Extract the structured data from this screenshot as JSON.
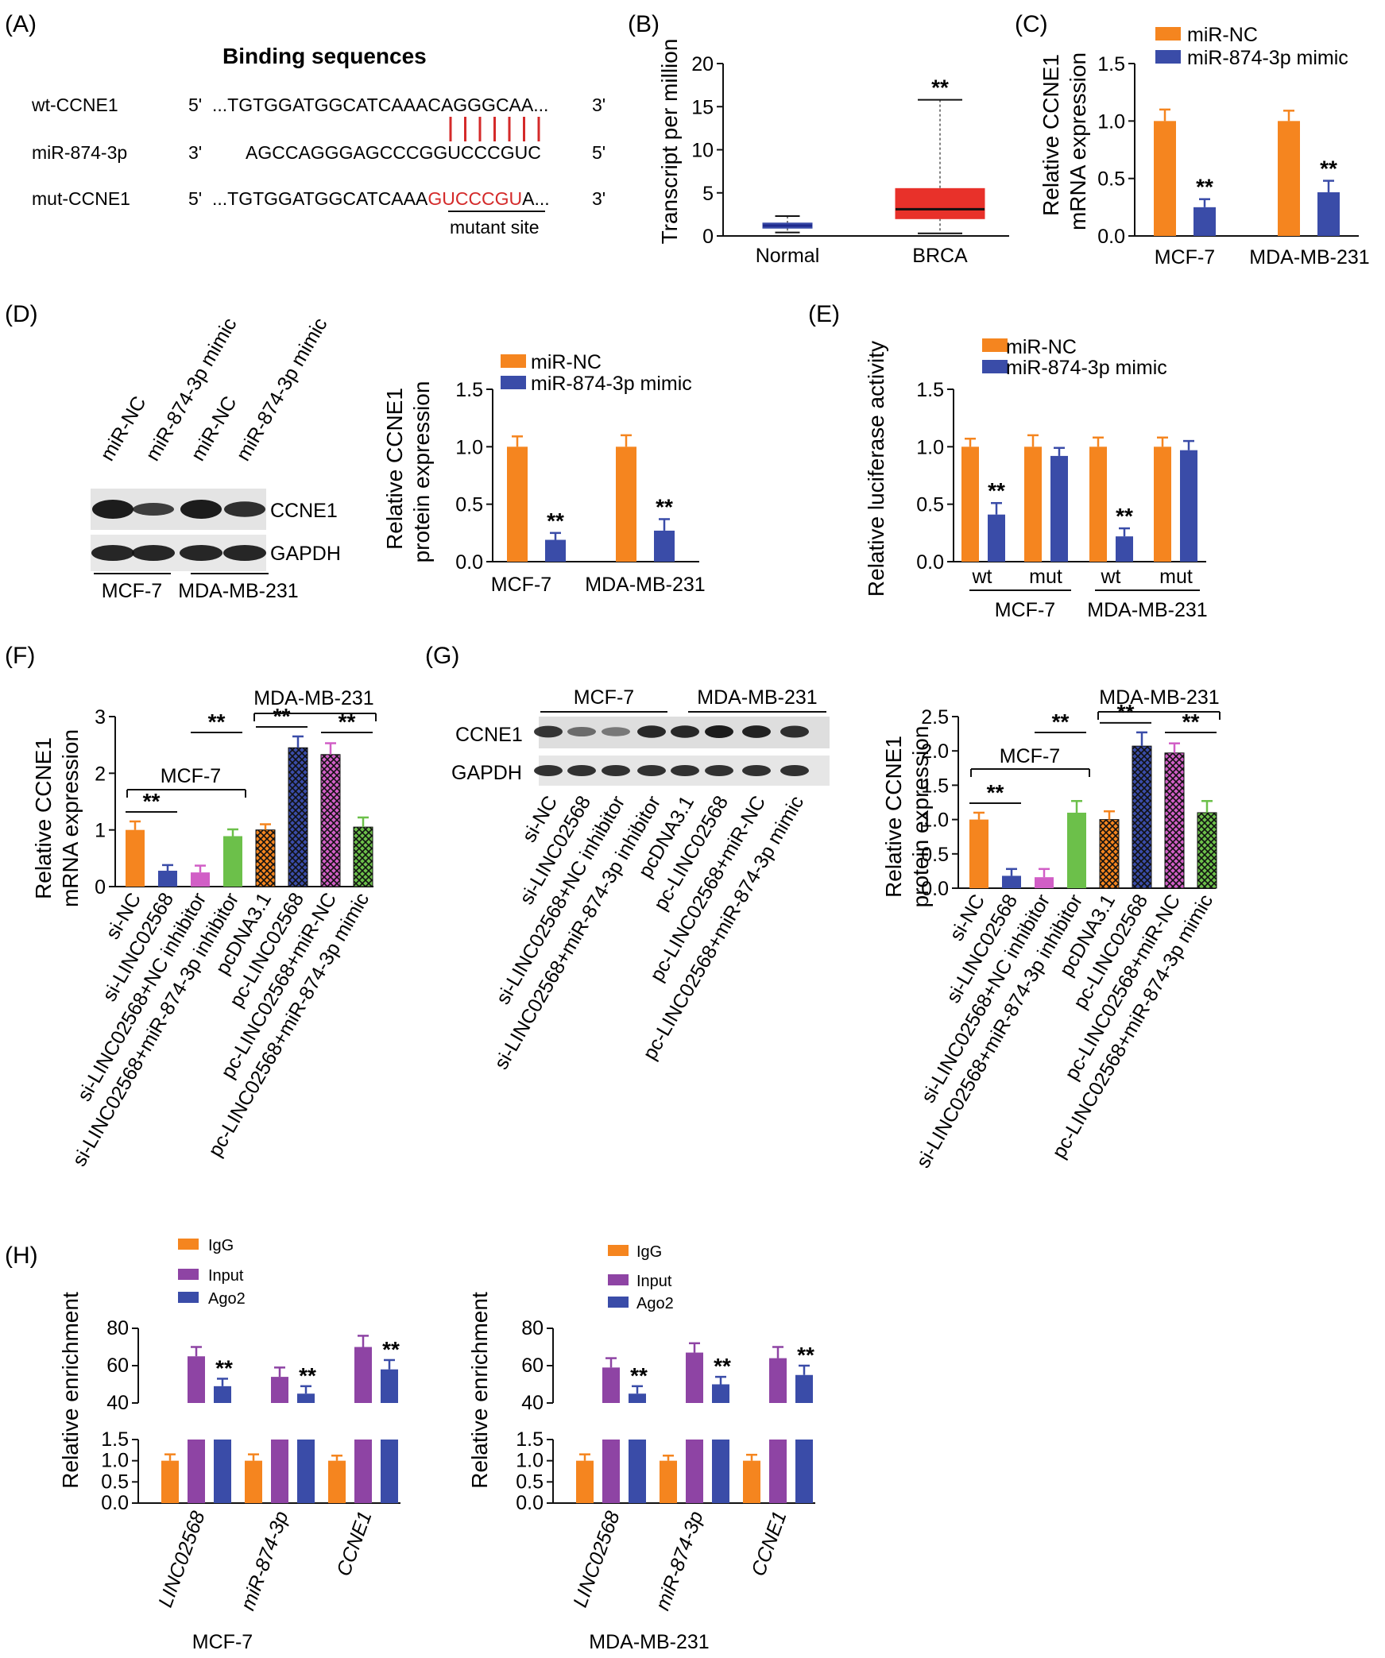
{
  "colors": {
    "orange": "#F5851F",
    "blue": "#3A4CA8",
    "purple": "#8E44A4",
    "pink": "#D15EC6",
    "green": "#6CC04A",
    "red": "#E8312A",
    "navy": "#1F2A8C",
    "seq_red": "#D42A2A"
  },
  "panelA": {
    "label": "(A)",
    "title": "Binding sequences",
    "rows": [
      {
        "name": "wt-CCNE1",
        "left_end": "5'",
        "prefix": "...TGTGGATGGCATCAAACAGGGCAA...",
        "highlight": "",
        "suffix": "",
        "right_end": "3'"
      },
      {
        "name": "miR-874-3p",
        "left_end": "3'",
        "prefix": "AGCCAGGGAGCCCGGUCCCGUC",
        "highlight": "",
        "suffix": "",
        "right_end": "5'"
      },
      {
        "name": "mut-CCNE1",
        "left_end": "5'",
        "prefix": "...TGTGGATGGCATCAAA",
        "highlight": "GUCCCGU",
        "suffix": "A...",
        "right_end": "3'"
      }
    ],
    "mutant_label": "mutant site"
  },
  "panelB": {
    "label": "(B)",
    "ylabel": "Transcript per million",
    "categories": [
      "Normal",
      "BRCA"
    ],
    "sig": "**"
  },
  "panelC": {
    "label": "(C)",
    "ylabel_line1": "Relative CCNE1",
    "ylabel_line2": "mRNA expression",
    "legend": [
      "miR-NC",
      "miR-874-3p mimic"
    ],
    "categories": [
      "MCF-7",
      "MDA-MB-231"
    ],
    "sig": "**"
  },
  "panelD": {
    "label": "(D)",
    "blot_lanes": [
      "miR-NC",
      "miR-874-3p mimic",
      "miR-NC",
      "miR-874-3p mimic"
    ],
    "blot_rows": [
      "CCNE1",
      "GAPDH"
    ],
    "blot_groups": [
      "MCF-7",
      "MDA-MB-231"
    ],
    "ylabel_line1": "Relative CCNE1",
    "ylabel_line2": "protein expression",
    "legend": [
      "miR-NC",
      "miR-874-3p mimic"
    ],
    "categories": [
      "MCF-7",
      "MDA-MB-231"
    ],
    "sig": "**"
  },
  "panelE": {
    "label": "(E)",
    "ylabel": "Relative luciferase activity",
    "legend": [
      "miR-NC",
      "miR-874-3p mimic"
    ],
    "subcategories": [
      "wt",
      "mut",
      "wt",
      "mut"
    ],
    "groups": [
      "MCF-7",
      "MDA-MB-231"
    ],
    "sig": "**"
  },
  "panelF": {
    "label": "(F)",
    "ylabel_line1": "Relative CCNE1",
    "ylabel_line2": "mRNA expression",
    "group_left": "MCF-7",
    "group_right": "MDA-MB-231",
    "categories": [
      "si-NC",
      "si-LINC02568",
      "si-LINC02568+NC inhibitor",
      "si-LINC02568+miR-874-3p inhibitor",
      "pcDNA3.1",
      "pc-LINC02568",
      "pc-LINC02568+miR-NC",
      "pc-LINC02568+miR-874-3p mimic"
    ],
    "sig": "**"
  },
  "panelG": {
    "label": "(G)",
    "blot_groups": [
      "MCF-7",
      "MDA-MB-231"
    ],
    "blot_rows": [
      "CCNE1",
      "GAPDH"
    ],
    "blot_lanes": [
      "si-NC",
      "si-LINC02568",
      "si-LINC02568+NC inhibitor",
      "si-LINC02568+miR-874-3p inhibitor",
      "pcDNA3.1",
      "pc-LINC02568",
      "pc-LINC02568+miR-NC",
      "pc-LINC02568+miR-874-3p mimic"
    ],
    "ylabel_line1": "Relative CCNE1",
    "ylabel_line2": "protein expression",
    "group_left": "MCF-7",
    "group_right": "MDA-MB-231",
    "categories": [
      "si-NC",
      "si-LINC02568",
      "si-LINC02568+NC inhibitor",
      "si-LINC02568+miR-874-3p inhibitor",
      "pcDNA3.1",
      "pc-LINC02568",
      "pc-LINC02568+miR-NC",
      "pc-LINC02568+miR-874-3p mimic"
    ],
    "sig": "**"
  },
  "panelH": {
    "label": "(H)",
    "ylabel": "Relative enrichment",
    "legend": [
      "IgG",
      "Input",
      "Ago2"
    ],
    "categories": [
      "LINC02568",
      "miR-874-3p",
      "CCNE1"
    ],
    "cell_lines": [
      "MCF-7",
      "MDA-MB-231"
    ],
    "sig": "**"
  },
  "chart_data": [
    {
      "id": "B",
      "type": "box",
      "title": "",
      "xlabel": "",
      "ylabel": "Transcript per million",
      "ylim": [
        0,
        20
      ],
      "yticks": [
        0,
        5,
        10,
        15,
        20
      ],
      "categories": [
        "Normal",
        "BRCA"
      ],
      "boxes": [
        {
          "category": "Normal",
          "min": 0.4,
          "q1": 0.9,
          "median": 1.2,
          "q3": 1.5,
          "max": 2.3
        },
        {
          "category": "BRCA",
          "min": 0.3,
          "q1": 2.0,
          "median": 3.1,
          "q3": 5.5,
          "max": 15.8
        }
      ],
      "significance": [
        {
          "category": "BRCA",
          "label": "**"
        }
      ]
    },
    {
      "id": "C",
      "type": "bar",
      "title": "",
      "ylabel": "Relative CCNE1 mRNA expression",
      "ylim": [
        0,
        1.5
      ],
      "yticks": [
        0.0,
        0.5,
        1.0,
        1.5
      ],
      "categories": [
        "MCF-7",
        "MDA-MB-231"
      ],
      "series": [
        {
          "name": "miR-NC",
          "values": [
            1.0,
            1.0
          ],
          "errors": [
            0.1,
            0.09
          ]
        },
        {
          "name": "miR-874-3p mimic",
          "values": [
            0.25,
            0.38
          ],
          "errors": [
            0.07,
            0.1
          ]
        }
      ],
      "significance": [
        {
          "series": "miR-874-3p mimic",
          "category": "MCF-7",
          "label": "**"
        },
        {
          "series": "miR-874-3p mimic",
          "category": "MDA-MB-231",
          "label": "**"
        }
      ]
    },
    {
      "id": "D",
      "type": "bar",
      "title": "",
      "ylabel": "Relative CCNE1 protein expression",
      "ylim": [
        0,
        1.5
      ],
      "yticks": [
        0.0,
        0.5,
        1.0,
        1.5
      ],
      "categories": [
        "MCF-7",
        "MDA-MB-231"
      ],
      "series": [
        {
          "name": "miR-NC",
          "values": [
            1.0,
            1.0
          ],
          "errors": [
            0.09,
            0.1
          ]
        },
        {
          "name": "miR-874-3p mimic",
          "values": [
            0.19,
            0.27
          ],
          "errors": [
            0.06,
            0.1
          ]
        }
      ],
      "significance": [
        {
          "series": "miR-874-3p mimic",
          "category": "MCF-7",
          "label": "**"
        },
        {
          "series": "miR-874-3p mimic",
          "category": "MDA-MB-231",
          "label": "**"
        }
      ]
    },
    {
      "id": "E",
      "type": "bar",
      "title": "",
      "ylabel": "Relative luciferase activity",
      "ylim": [
        0,
        1.5
      ],
      "yticks": [
        0.0,
        0.5,
        1.0,
        1.5
      ],
      "categories": [
        "MCF-7 wt",
        "MCF-7 mut",
        "MDA-MB-231 wt",
        "MDA-MB-231 mut"
      ],
      "series": [
        {
          "name": "miR-NC",
          "values": [
            1.0,
            1.0,
            1.0,
            1.0
          ],
          "errors": [
            0.07,
            0.1,
            0.08,
            0.08
          ]
        },
        {
          "name": "miR-874-3p mimic",
          "values": [
            0.41,
            0.92,
            0.22,
            0.97
          ],
          "errors": [
            0.1,
            0.07,
            0.07,
            0.08
          ]
        }
      ],
      "significance": [
        {
          "category": "MCF-7 wt",
          "label": "**"
        },
        {
          "category": "MDA-MB-231 wt",
          "label": "**"
        }
      ]
    },
    {
      "id": "F",
      "type": "bar",
      "title": "",
      "ylabel": "Relative CCNE1 mRNA expression",
      "ylim": [
        0,
        3
      ],
      "yticks": [
        0,
        1,
        2,
        3
      ],
      "categories": [
        "si-NC",
        "si-LINC02568",
        "si-LINC02568+NC inhibitor",
        "si-LINC02568+miR-874-3p inhibitor",
        "pcDNA3.1",
        "pc-LINC02568",
        "pc-LINC02568+miR-NC",
        "pc-LINC02568+miR-874-3p mimic"
      ],
      "values": [
        1.0,
        0.28,
        0.25,
        0.89,
        1.0,
        2.45,
        2.33,
        1.05
      ],
      "errors": [
        0.15,
        0.1,
        0.12,
        0.12,
        0.1,
        0.2,
        0.2,
        0.17
      ],
      "significance": [
        {
          "from": "si-NC",
          "to": "si-LINC02568",
          "label": "**"
        },
        {
          "from": "si-LINC02568+NC inhibitor",
          "to": "si-LINC02568+miR-874-3p inhibitor",
          "label": "**"
        },
        {
          "from": "pcDNA3.1",
          "to": "pc-LINC02568",
          "label": "**"
        },
        {
          "from": "pc-LINC02568+miR-NC",
          "to": "pc-LINC02568+miR-874-3p mimic",
          "label": "**"
        }
      ]
    },
    {
      "id": "G",
      "type": "bar",
      "title": "",
      "ylabel": "Relative CCNE1 protein expression",
      "ylim": [
        0,
        2.5
      ],
      "yticks": [
        0.0,
        0.5,
        1.0,
        1.5,
        2.0,
        2.5
      ],
      "categories": [
        "si-NC",
        "si-LINC02568",
        "si-LINC02568+NC inhibitor",
        "si-LINC02568+miR-874-3p inhibitor",
        "pcDNA3.1",
        "pc-LINC02568",
        "pc-LINC02568+miR-NC",
        "pc-LINC02568+miR-874-3p mimic"
      ],
      "values": [
        1.0,
        0.18,
        0.16,
        1.1,
        1.0,
        2.07,
        1.97,
        1.1
      ],
      "errors": [
        0.1,
        0.1,
        0.12,
        0.17,
        0.12,
        0.2,
        0.14,
        0.17
      ],
      "significance": [
        {
          "from": "si-NC",
          "to": "si-LINC02568",
          "label": "**"
        },
        {
          "from": "si-LINC02568+NC inhibitor",
          "to": "si-LINC02568+miR-874-3p inhibitor",
          "label": "**"
        },
        {
          "from": "pcDNA3.1",
          "to": "pc-LINC02568",
          "label": "**"
        },
        {
          "from": "pc-LINC02568+miR-NC",
          "to": "pc-LINC02568+miR-874-3p mimic",
          "label": "**"
        }
      ]
    },
    {
      "id": "H-MCF-7",
      "type": "bar",
      "title": "MCF-7",
      "ylabel": "Relative enrichment",
      "axis_break": true,
      "lower_yticks": [
        0.0,
        0.5,
        1.0,
        1.5
      ],
      "upper_yticks": [
        40,
        60,
        80
      ],
      "categories": [
        "LINC02568",
        "miR-874-3p",
        "CCNE1"
      ],
      "series": [
        {
          "name": "IgG",
          "values": [
            1.0,
            1.0,
            1.0
          ],
          "errors": [
            0.15,
            0.15,
            0.12
          ]
        },
        {
          "name": "Input",
          "values": [
            65,
            54,
            70
          ],
          "errors": [
            5,
            5,
            6
          ]
        },
        {
          "name": "Ago2",
          "values": [
            49,
            45,
            58
          ],
          "errors": [
            4,
            4,
            5
          ]
        }
      ],
      "significance": [
        {
          "series": "Ago2",
          "category": "LINC02568",
          "label": "**"
        },
        {
          "series": "Ago2",
          "category": "miR-874-3p",
          "label": "**"
        },
        {
          "series": "Ago2",
          "category": "CCNE1",
          "label": "**"
        }
      ]
    },
    {
      "id": "H-MDA-MB-231",
      "type": "bar",
      "title": "MDA-MB-231",
      "ylabel": "Relative enrichment",
      "axis_break": true,
      "lower_yticks": [
        0.0,
        0.5,
        1.0,
        1.5
      ],
      "upper_yticks": [
        40,
        60,
        80
      ],
      "categories": [
        "LINC02568",
        "miR-874-3p",
        "CCNE1"
      ],
      "series": [
        {
          "name": "IgG",
          "values": [
            1.0,
            1.0,
            1.0
          ],
          "errors": [
            0.15,
            0.12,
            0.14
          ]
        },
        {
          "name": "Input",
          "values": [
            59,
            67,
            64
          ],
          "errors": [
            5,
            5,
            6
          ]
        },
        {
          "name": "Ago2",
          "values": [
            45,
            50,
            55
          ],
          "errors": [
            4,
            4,
            5
          ]
        }
      ],
      "significance": [
        {
          "series": "Ago2",
          "category": "LINC02568",
          "label": "**"
        },
        {
          "series": "Ago2",
          "category": "miR-874-3p",
          "label": "**"
        },
        {
          "series": "Ago2",
          "category": "CCNE1",
          "label": "**"
        }
      ]
    }
  ]
}
